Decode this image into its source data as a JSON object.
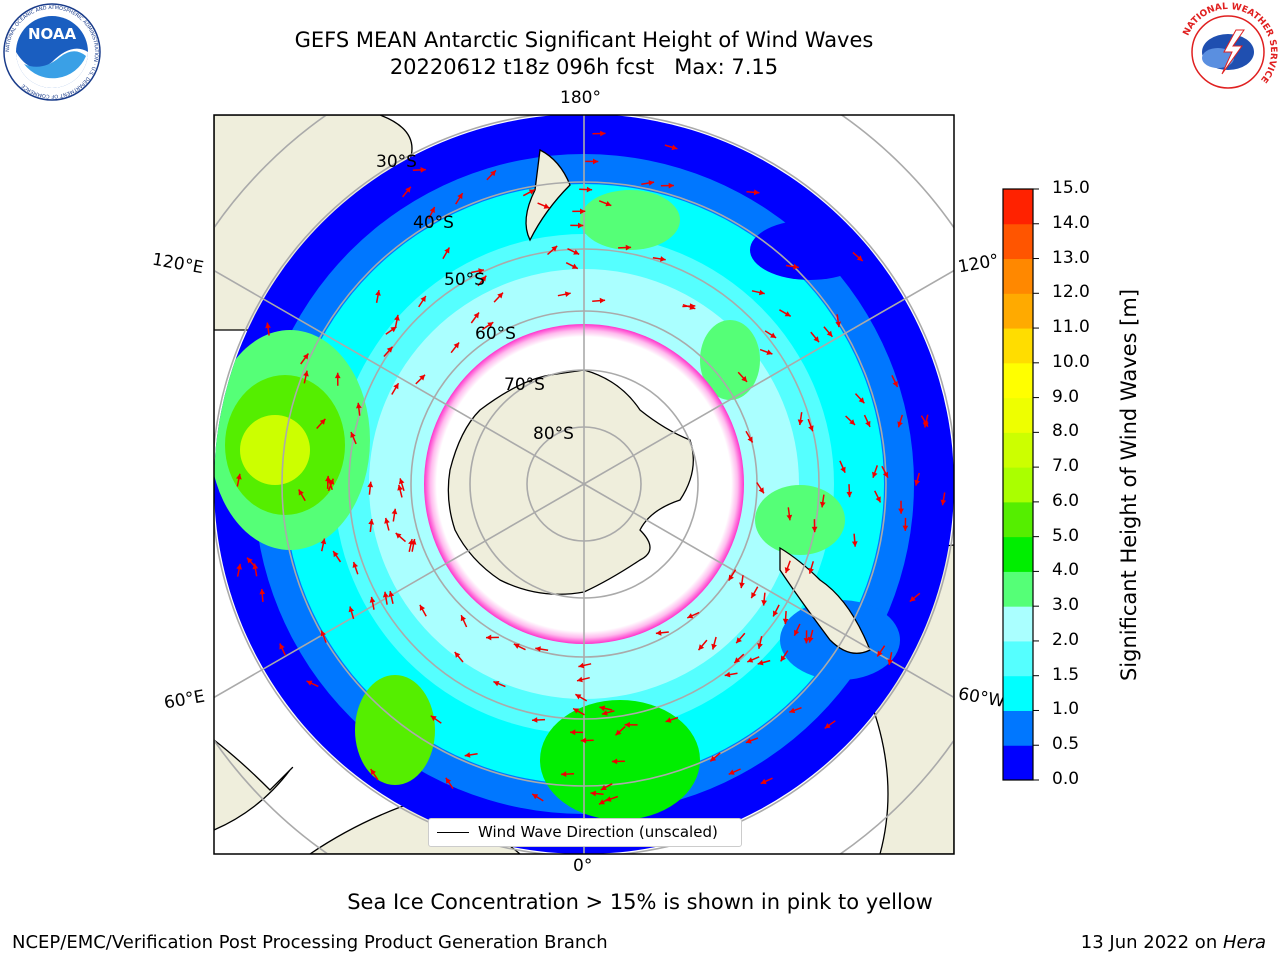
{
  "header": {
    "title_line1": "GEFS MEAN Antarctic Significant Height of Wind Waves",
    "title_line2": "20220612 t18z 096h fcst   Max: 7.15"
  },
  "logos": {
    "left": {
      "icon": "noaa-logo",
      "text": "NOAA",
      "ring_text": "NATIONAL OCEANIC AND ATMOSPHERIC ADMINISTRATION · U.S. DEPARTMENT OF COMMERCE"
    },
    "right": {
      "icon": "nws-logo",
      "ring_text": "NATIONAL WEATHER SERVICE"
    }
  },
  "map": {
    "projection": "south-polar-stereographic",
    "longitude_labels": [
      "180°",
      "120°E",
      "120°",
      "60°E",
      "60°W",
      "0°"
    ],
    "latitude_labels": [
      "30°S",
      "40°S",
      "50°S",
      "60°S",
      "70°S",
      "80°S"
    ],
    "legend_label": "Wind Wave Direction (unscaled)",
    "colors": {
      "land": "#efeedc",
      "ice_edge": "#ff33cc",
      "arrows": "#ee0000"
    }
  },
  "colorbar": {
    "label": "Significant Height of Wind Waves [m]",
    "ticks": [
      "0.0",
      "0.5",
      "1.0",
      "1.5",
      "2.0",
      "3.0",
      "4.0",
      "5.0",
      "6.0",
      "7.0",
      "8.0",
      "9.0",
      "10.0",
      "11.0",
      "12.0",
      "13.0",
      "14.0",
      "15.0"
    ],
    "colors": [
      "#0000ff",
      "#0077ff",
      "#00ffff",
      "#55ffff",
      "#aaffff",
      "#55ff77",
      "#00ee00",
      "#55ee00",
      "#aaff00",
      "#ccff00",
      "#eeff00",
      "#ffff00",
      "#ffdd00",
      "#ffaa00",
      "#ff8800",
      "#ff5500",
      "#ff2200"
    ]
  },
  "footer": {
    "note": "Sea Ice Concentration > 15% is shown in pink to yellow",
    "credit": "NCEP/EMC/Verification Post Processing Product Generation Branch",
    "date": "13 Jun 2022 on ",
    "host": "Hera"
  }
}
